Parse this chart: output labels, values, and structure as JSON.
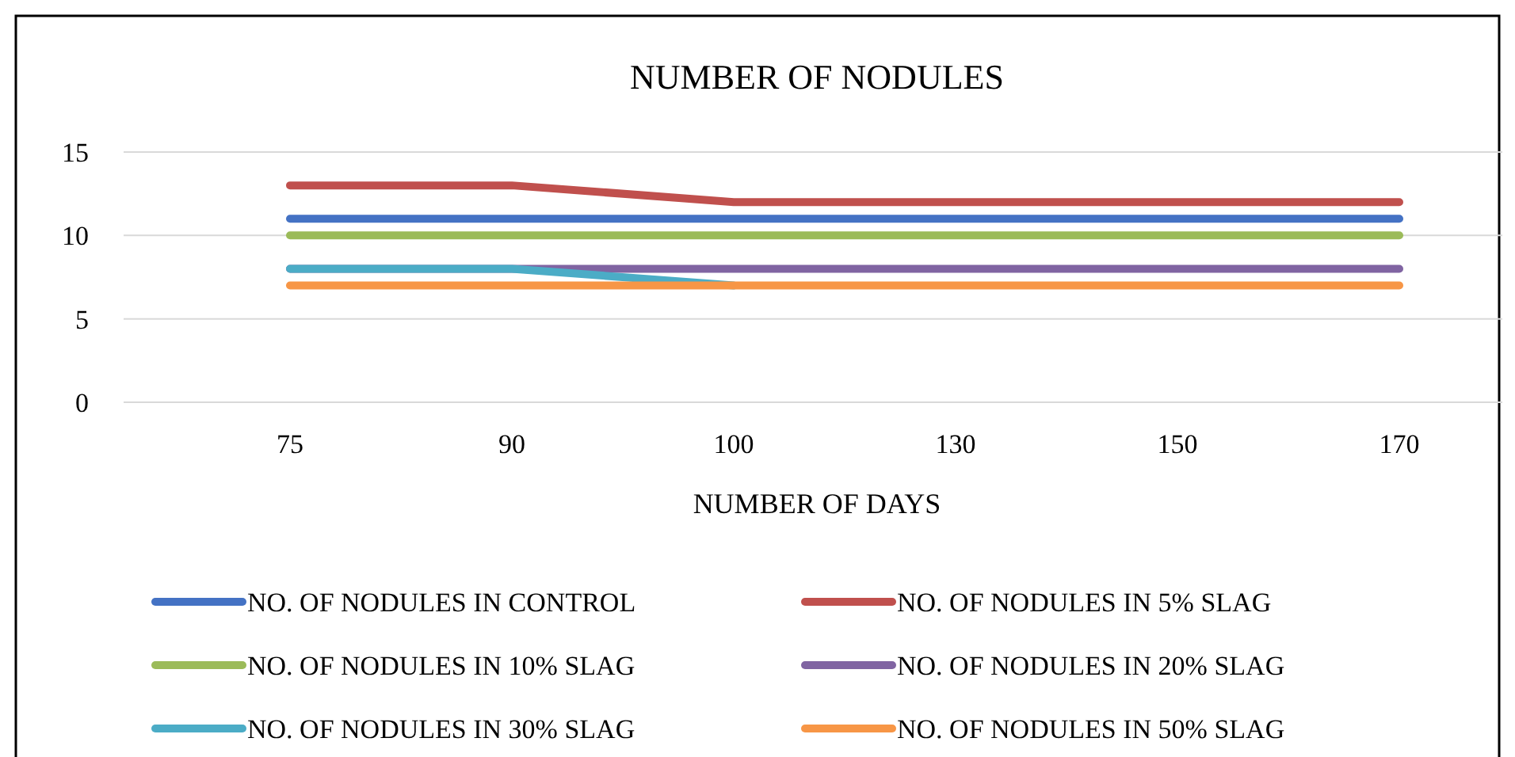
{
  "chart_data": {
    "type": "line",
    "title": "NUMBER OF NODULES",
    "xlabel": "NUMBER OF DAYS",
    "categories": [
      "75",
      "90",
      "100",
      "130",
      "150",
      "170"
    ],
    "series": [
      {
        "name": "NO. OF NODULES IN CONTROL",
        "color": "#4472c4",
        "values": [
          11,
          11,
          11,
          11,
          11,
          11
        ]
      },
      {
        "name": "NO. OF NODULES IN 5% SLAG",
        "color": "#c0504d",
        "values": [
          13,
          13,
          12,
          12,
          12,
          12
        ]
      },
      {
        "name": "NO. OF NODULES IN 10% SLAG",
        "color": "#9bbb59",
        "values": [
          10,
          10,
          10,
          10,
          10,
          10
        ]
      },
      {
        "name": "NO. OF NODULES IN 20% SLAG",
        "color": "#8064a2",
        "values": [
          8,
          8,
          8,
          8,
          8,
          8
        ]
      },
      {
        "name": "NO. OF NODULES IN 30% SLAG",
        "color": "#4bacc6",
        "values": [
          8,
          8,
          7,
          null,
          null,
          null
        ]
      },
      {
        "name": "NO. OF NODULES IN 50% SLAG",
        "color": "#f79646",
        "values": [
          7,
          7,
          7,
          7,
          7,
          7
        ]
      }
    ],
    "ylim": [
      0,
      15
    ],
    "yticks": [
      0,
      5,
      10,
      15
    ],
    "grid": "y",
    "legend": "bottom",
    "marker": "none",
    "line_style": "solid"
  }
}
